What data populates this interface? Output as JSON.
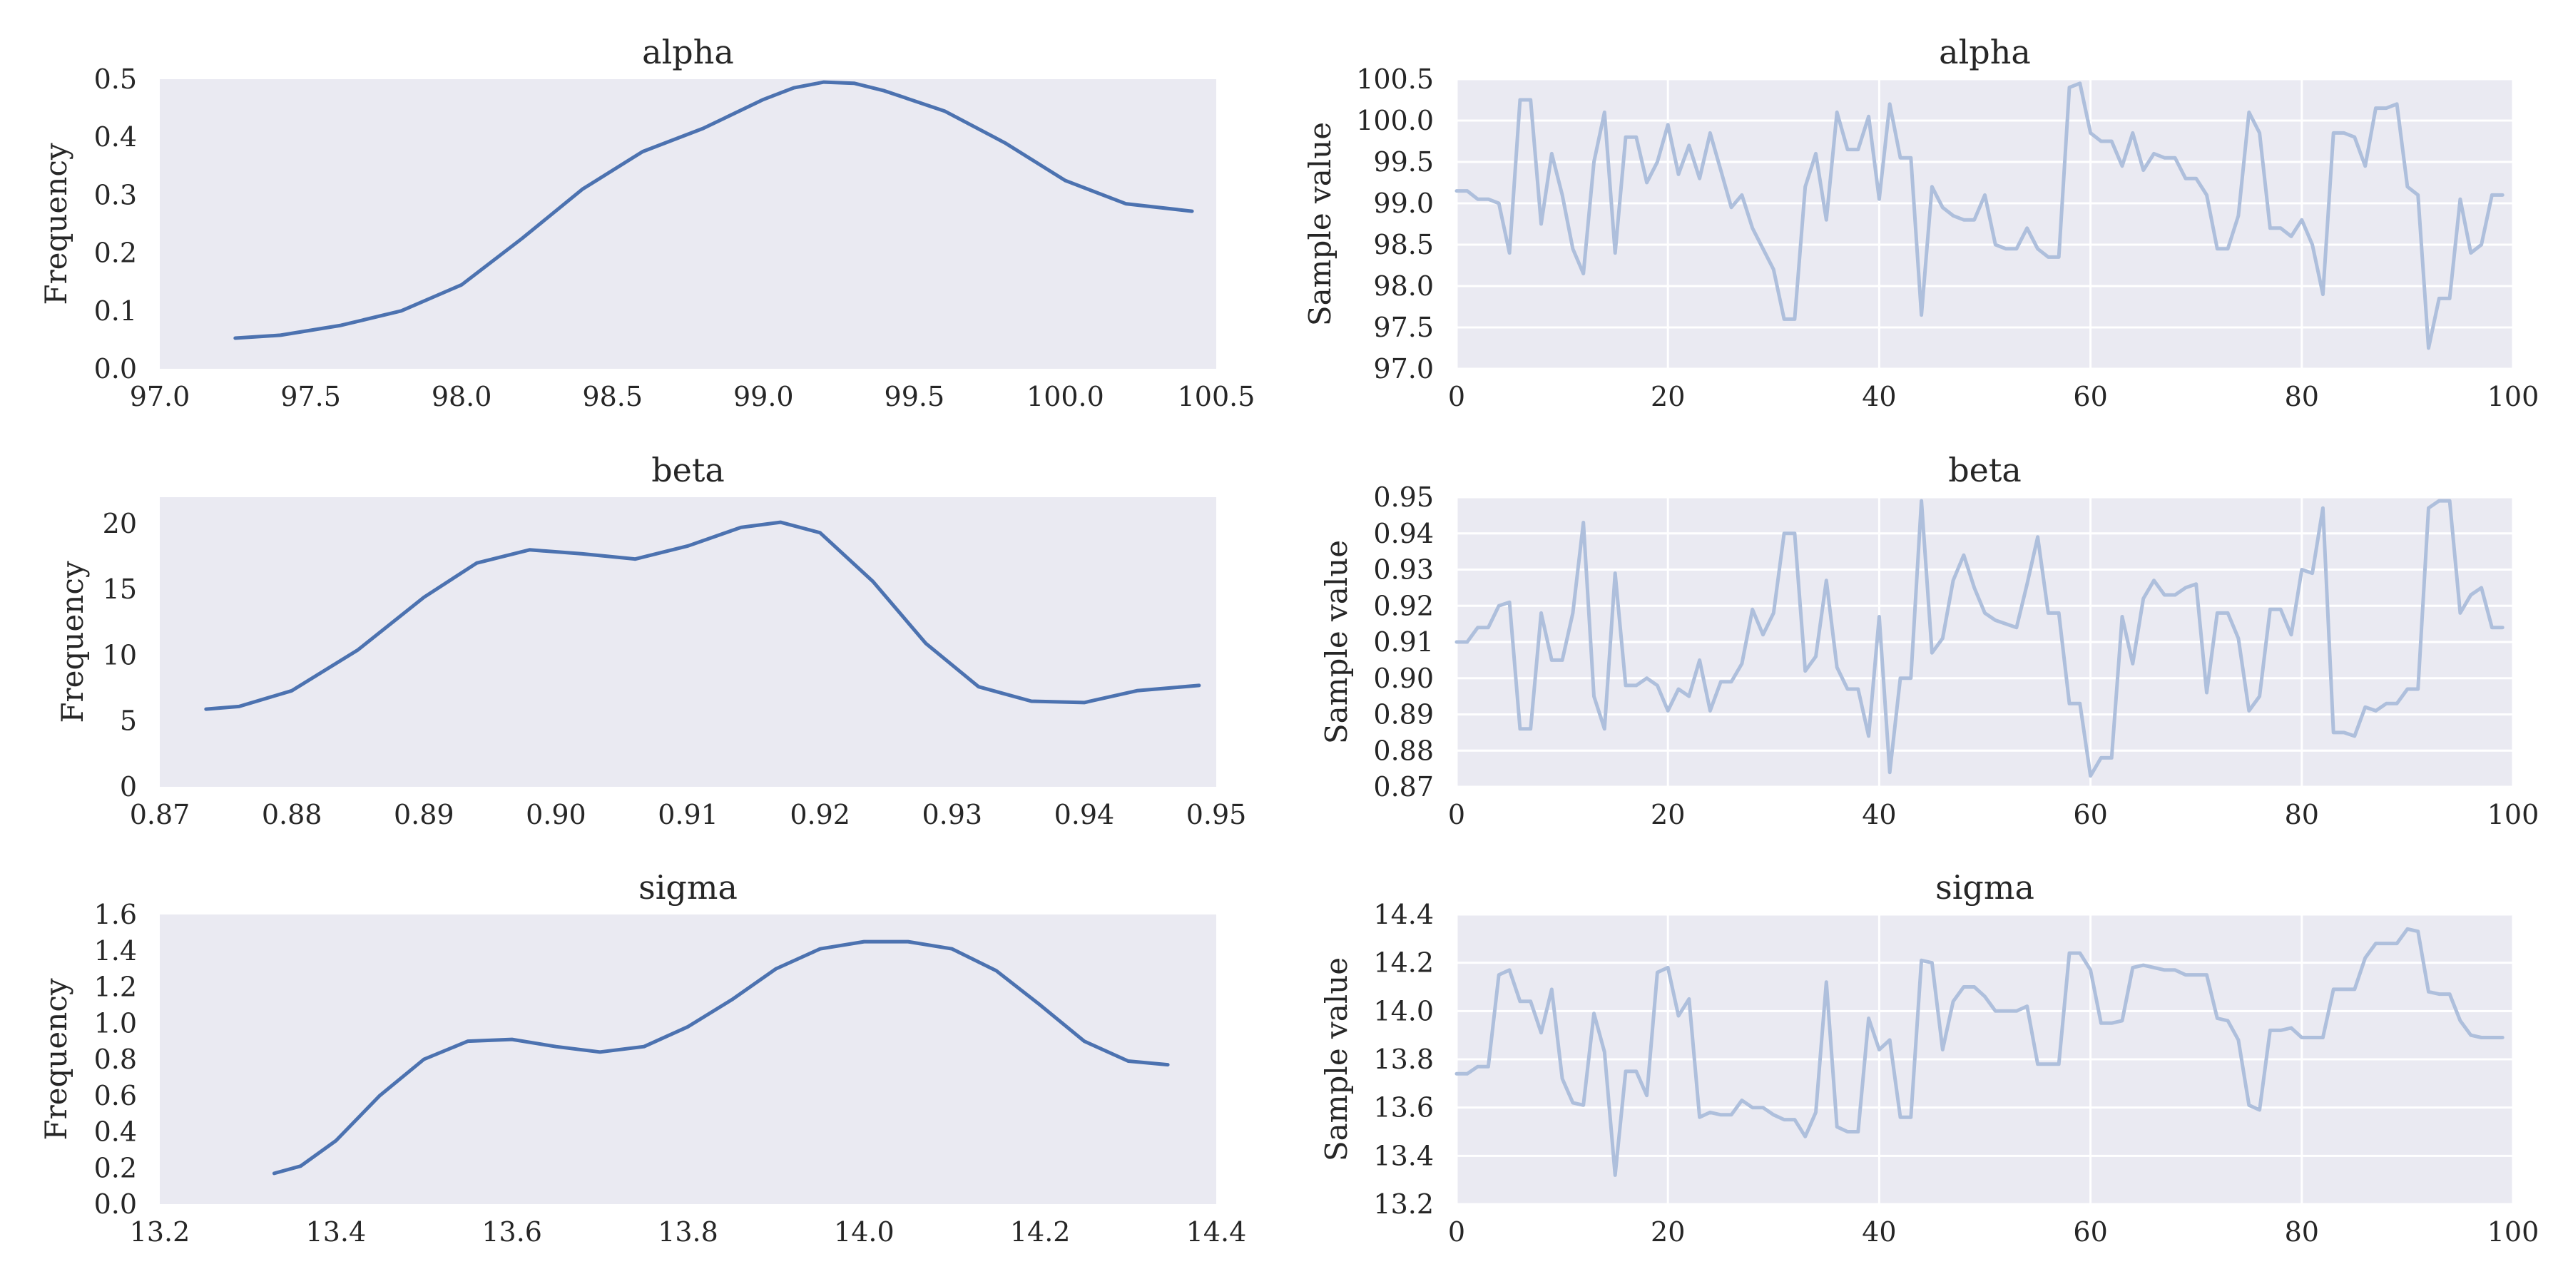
{
  "chart_data": [
    {
      "type": "line",
      "panel": "density",
      "title": "alpha",
      "xlabel": "",
      "ylabel": "Frequency",
      "xlim": [
        97.0,
        100.5
      ],
      "ylim": [
        0.0,
        0.5
      ],
      "xticks": [
        "97.0",
        "97.5",
        "98.0",
        "98.5",
        "99.0",
        "99.5",
        "100.0",
        "100.5"
      ],
      "yticks": [
        "0.0",
        "0.1",
        "0.2",
        "0.3",
        "0.4",
        "0.5"
      ],
      "grid": false,
      "x": [
        97.25,
        97.4,
        97.6,
        97.8,
        98.0,
        98.2,
        98.4,
        98.6,
        98.8,
        99.0,
        99.1,
        99.2,
        99.3,
        99.4,
        99.6,
        99.8,
        100.0,
        100.2,
        100.42
      ],
      "y": [
        0.053,
        0.058,
        0.075,
        0.1,
        0.145,
        0.225,
        0.31,
        0.375,
        0.415,
        0.465,
        0.485,
        0.495,
        0.493,
        0.48,
        0.445,
        0.39,
        0.325,
        0.285,
        0.272
      ]
    },
    {
      "type": "line",
      "panel": "trace",
      "title": "alpha",
      "xlabel": "",
      "ylabel": "Sample value",
      "xlim": [
        0,
        100
      ],
      "ylim": [
        97.0,
        100.5
      ],
      "xticks": [
        "0",
        "20",
        "40",
        "60",
        "80",
        "100"
      ],
      "yticks": [
        "97.0",
        "97.5",
        "98.0",
        "98.5",
        "99.0",
        "99.5",
        "100.0",
        "100.5"
      ],
      "grid": true,
      "values": [
        99.15,
        99.15,
        99.05,
        99.05,
        99.0,
        98.4,
        100.25,
        100.25,
        98.75,
        99.6,
        99.1,
        98.45,
        98.15,
        99.5,
        100.1,
        98.4,
        99.8,
        99.8,
        99.25,
        99.5,
        99.95,
        99.35,
        99.7,
        99.3,
        99.85,
        99.4,
        98.95,
        99.1,
        98.7,
        98.45,
        98.2,
        97.6,
        97.6,
        99.2,
        99.6,
        98.8,
        100.1,
        99.65,
        99.65,
        100.05,
        99.05,
        100.2,
        99.55,
        99.55,
        97.65,
        99.2,
        98.95,
        98.85,
        98.8,
        98.8,
        99.1,
        98.5,
        98.45,
        98.45,
        98.7,
        98.45,
        98.35,
        98.35,
        100.4,
        100.45,
        99.85,
        99.75,
        99.75,
        99.45,
        99.85,
        99.4,
        99.6,
        99.55,
        99.55,
        99.3,
        99.3,
        99.1,
        98.45,
        98.45,
        98.85,
        100.1,
        99.85,
        98.7,
        98.7,
        98.6,
        98.8,
        98.5,
        97.9,
        99.85,
        99.85,
        99.8,
        99.45,
        100.15,
        100.15,
        100.2,
        99.2,
        99.1,
        97.25,
        97.85,
        97.85,
        99.05,
        98.4,
        98.5,
        99.1,
        99.1
      ]
    },
    {
      "type": "line",
      "panel": "density",
      "title": "beta",
      "xlabel": "",
      "ylabel": "Frequency",
      "xlim": [
        0.87,
        0.95
      ],
      "ylim": [
        0,
        22
      ],
      "xticks": [
        "0.87",
        "0.88",
        "0.89",
        "0.90",
        "0.91",
        "0.92",
        "0.93",
        "0.94",
        "0.95"
      ],
      "yticks": [
        "0",
        "5",
        "10",
        "15",
        "20"
      ],
      "grid": false,
      "x": [
        0.8735,
        0.876,
        0.88,
        0.885,
        0.89,
        0.894,
        0.898,
        0.902,
        0.906,
        0.91,
        0.914,
        0.917,
        0.92,
        0.924,
        0.928,
        0.932,
        0.936,
        0.94,
        0.944,
        0.9487
      ],
      "y": [
        5.9,
        6.1,
        7.3,
        10.4,
        14.4,
        17.0,
        18.0,
        17.7,
        17.3,
        18.3,
        19.7,
        20.1,
        19.3,
        15.6,
        10.9,
        7.6,
        6.5,
        6.4,
        7.3,
        7.7
      ]
    },
    {
      "type": "line",
      "panel": "trace",
      "title": "beta",
      "xlabel": "",
      "ylabel": "Sample value",
      "xlim": [
        0,
        100
      ],
      "ylim": [
        0.87,
        0.95
      ],
      "xticks": [
        "0",
        "20",
        "40",
        "60",
        "80",
        "100"
      ],
      "yticks": [
        "0.87",
        "0.88",
        "0.89",
        "0.90",
        "0.91",
        "0.92",
        "0.93",
        "0.94",
        "0.95"
      ],
      "grid": true,
      "values": [
        0.91,
        0.91,
        0.914,
        0.914,
        0.92,
        0.921,
        0.886,
        0.886,
        0.918,
        0.905,
        0.905,
        0.918,
        0.943,
        0.895,
        0.886,
        0.929,
        0.898,
        0.898,
        0.9,
        0.898,
        0.891,
        0.897,
        0.895,
        0.905,
        0.891,
        0.899,
        0.899,
        0.904,
        0.919,
        0.912,
        0.918,
        0.94,
        0.94,
        0.902,
        0.906,
        0.927,
        0.903,
        0.897,
        0.897,
        0.884,
        0.917,
        0.874,
        0.9,
        0.9,
        0.949,
        0.907,
        0.911,
        0.927,
        0.934,
        0.925,
        0.918,
        0.916,
        0.915,
        0.914,
        0.926,
        0.939,
        0.918,
        0.918,
        0.893,
        0.893,
        0.873,
        0.878,
        0.878,
        0.917,
        0.904,
        0.922,
        0.927,
        0.923,
        0.923,
        0.925,
        0.926,
        0.896,
        0.918,
        0.918,
        0.911,
        0.891,
        0.895,
        0.919,
        0.919,
        0.912,
        0.93,
        0.929,
        0.947,
        0.885,
        0.885,
        0.884,
        0.892,
        0.891,
        0.893,
        0.893,
        0.897,
        0.897,
        0.947,
        0.949,
        0.949,
        0.918,
        0.923,
        0.925,
        0.914,
        0.914
      ]
    },
    {
      "type": "line",
      "panel": "density",
      "title": "sigma",
      "xlabel": "",
      "ylabel": "Frequency",
      "xlim": [
        13.2,
        14.4
      ],
      "ylim": [
        0.0,
        1.6
      ],
      "xticks": [
        "13.2",
        "13.4",
        "13.6",
        "13.8",
        "14.0",
        "14.2",
        "14.4"
      ],
      "yticks": [
        "0.0",
        "0.2",
        "0.4",
        "0.6",
        "0.8",
        "1.0",
        "1.2",
        "1.4",
        "1.6"
      ],
      "grid": false,
      "x": [
        13.33,
        13.36,
        13.4,
        13.45,
        13.5,
        13.55,
        13.6,
        13.65,
        13.7,
        13.75,
        13.8,
        13.85,
        13.9,
        13.95,
        14.0,
        14.05,
        14.1,
        14.15,
        14.2,
        14.25,
        14.3,
        14.345
      ],
      "y": [
        0.17,
        0.21,
        0.35,
        0.6,
        0.8,
        0.9,
        0.91,
        0.87,
        0.84,
        0.87,
        0.98,
        1.13,
        1.3,
        1.41,
        1.45,
        1.45,
        1.41,
        1.29,
        1.1,
        0.9,
        0.79,
        0.77
      ]
    },
    {
      "type": "line",
      "panel": "trace",
      "title": "sigma",
      "xlabel": "",
      "ylabel": "Sample value",
      "xlim": [
        0,
        100
      ],
      "ylim": [
        13.2,
        14.4
      ],
      "xticks": [
        "0",
        "20",
        "40",
        "60",
        "80",
        "100"
      ],
      "yticks": [
        "13.2",
        "13.4",
        "13.6",
        "13.8",
        "14.0",
        "14.2",
        "14.4"
      ],
      "grid": true,
      "values": [
        13.74,
        13.74,
        13.77,
        13.77,
        14.15,
        14.17,
        14.04,
        14.04,
        13.91,
        14.09,
        13.72,
        13.62,
        13.61,
        13.99,
        13.83,
        13.32,
        13.75,
        13.75,
        13.65,
        14.16,
        14.18,
        13.98,
        14.05,
        13.56,
        13.58,
        13.57,
        13.57,
        13.63,
        13.6,
        13.6,
        13.57,
        13.55,
        13.55,
        13.48,
        13.58,
        14.12,
        13.52,
        13.5,
        13.5,
        13.97,
        13.84,
        13.88,
        13.56,
        13.56,
        14.21,
        14.2,
        13.84,
        14.04,
        14.1,
        14.1,
        14.06,
        14.0,
        14.0,
        14.0,
        14.02,
        13.78,
        13.78,
        13.78,
        14.24,
        14.24,
        14.17,
        13.95,
        13.95,
        13.96,
        14.18,
        14.19,
        14.18,
        14.17,
        14.17,
        14.15,
        14.15,
        14.15,
        13.97,
        13.96,
        13.88,
        13.61,
        13.59,
        13.92,
        13.92,
        13.93,
        13.89,
        13.89,
        13.89,
        14.09,
        14.09,
        14.09,
        14.22,
        14.28,
        14.28,
        14.28,
        14.34,
        14.33,
        14.08,
        14.07,
        14.07,
        13.96,
        13.9,
        13.89,
        13.89,
        13.89
      ]
    }
  ]
}
